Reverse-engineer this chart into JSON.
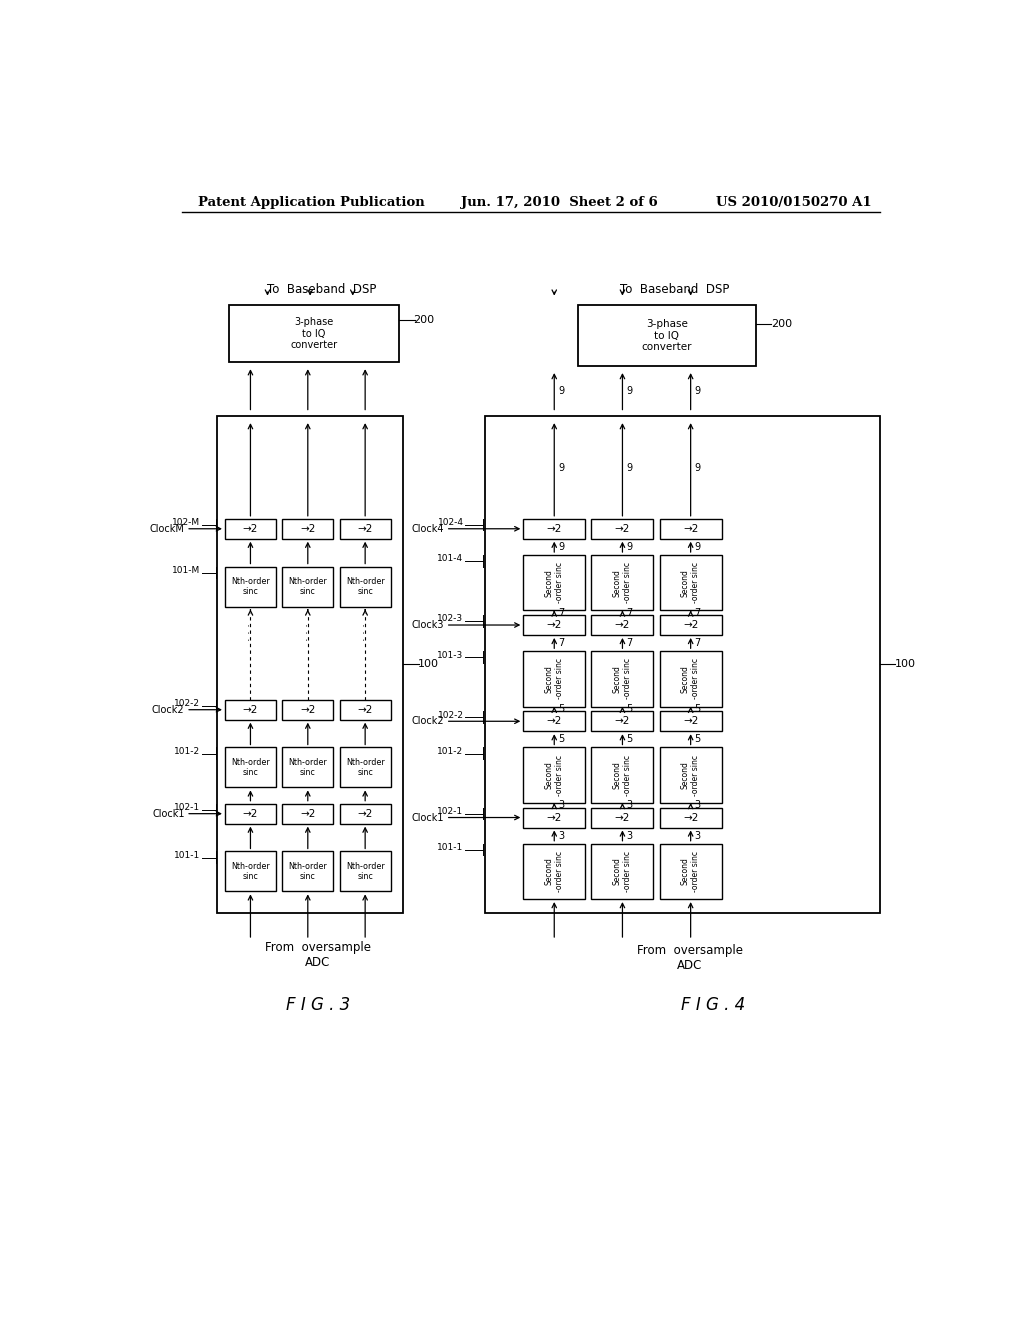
{
  "bg_color": "#ffffff",
  "header_left": "Patent Application Publication",
  "header_mid": "Jun. 17, 2010  Sheet 2 of 6",
  "header_right": "US 2010/0150270 A1",
  "fig3_label": "F I G . 3",
  "fig4_label": "F I G . 4"
}
